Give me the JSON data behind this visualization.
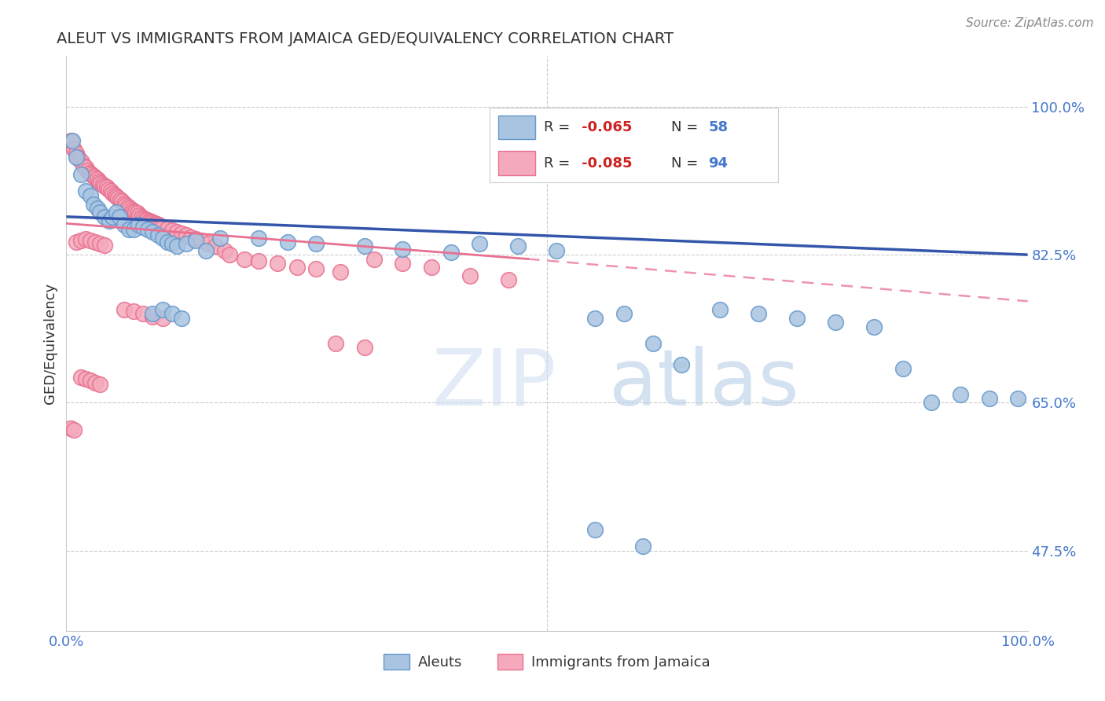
{
  "title": "ALEUT VS IMMIGRANTS FROM JAMAICA GED/EQUIVALENCY CORRELATION CHART",
  "source": "Source: ZipAtlas.com",
  "ylabel": "GED/Equivalency",
  "xlim": [
    0.0,
    1.0
  ],
  "ylim": [
    0.38,
    1.06
  ],
  "yticks": [
    0.475,
    0.65,
    0.825,
    1.0
  ],
  "ytick_labels": [
    "47.5%",
    "65.0%",
    "82.5%",
    "100.0%"
  ],
  "blue_color": "#A8C4E0",
  "blue_edge": "#6699CC",
  "pink_color": "#F4AABC",
  "pink_edge": "#E87090",
  "trend_blue_color": "#3355AA",
  "trend_pink_color": "#E87090",
  "watermark_zip": "ZIP",
  "watermark_atlas": "atlas",
  "watermark_color": "#C8D8EC",
  "aleuts_x": [
    0.006,
    0.01,
    0.015,
    0.02,
    0.025,
    0.028,
    0.032,
    0.035,
    0.04,
    0.045,
    0.048,
    0.052,
    0.055,
    0.06,
    0.065,
    0.07,
    0.075,
    0.08,
    0.085,
    0.09,
    0.095,
    0.1,
    0.105,
    0.11,
    0.115,
    0.125,
    0.135,
    0.145,
    0.16,
    0.09,
    0.1,
    0.11,
    0.12,
    0.2,
    0.23,
    0.26,
    0.31,
    0.35,
    0.4,
    0.43,
    0.47,
    0.51,
    0.55,
    0.58,
    0.61,
    0.64,
    0.68,
    0.72,
    0.76,
    0.8,
    0.84,
    0.87,
    0.9,
    0.93,
    0.96,
    0.99,
    0.55,
    0.6
  ],
  "aleuts_y": [
    0.96,
    0.94,
    0.92,
    0.9,
    0.895,
    0.885,
    0.88,
    0.875,
    0.87,
    0.865,
    0.87,
    0.875,
    0.87,
    0.86,
    0.855,
    0.855,
    0.86,
    0.858,
    0.855,
    0.852,
    0.848,
    0.845,
    0.84,
    0.838,
    0.835,
    0.838,
    0.842,
    0.83,
    0.845,
    0.755,
    0.76,
    0.755,
    0.75,
    0.845,
    0.84,
    0.838,
    0.835,
    0.832,
    0.828,
    0.838,
    0.835,
    0.83,
    0.75,
    0.755,
    0.72,
    0.695,
    0.76,
    0.755,
    0.75,
    0.745,
    0.74,
    0.69,
    0.65,
    0.66,
    0.655,
    0.655,
    0.5,
    0.48
  ],
  "jamaica_x": [
    0.003,
    0.005,
    0.008,
    0.01,
    0.012,
    0.014,
    0.016,
    0.018,
    0.02,
    0.022,
    0.024,
    0.026,
    0.028,
    0.03,
    0.032,
    0.034,
    0.036,
    0.038,
    0.04,
    0.042,
    0.044,
    0.046,
    0.048,
    0.05,
    0.052,
    0.054,
    0.056,
    0.058,
    0.06,
    0.062,
    0.064,
    0.066,
    0.068,
    0.07,
    0.072,
    0.074,
    0.076,
    0.078,
    0.08,
    0.082,
    0.084,
    0.086,
    0.088,
    0.09,
    0.092,
    0.094,
    0.096,
    0.098,
    0.1,
    0.105,
    0.11,
    0.115,
    0.12,
    0.125,
    0.13,
    0.135,
    0.14,
    0.148,
    0.155,
    0.165,
    0.01,
    0.015,
    0.02,
    0.025,
    0.03,
    0.035,
    0.04,
    0.17,
    0.185,
    0.2,
    0.22,
    0.24,
    0.26,
    0.285,
    0.32,
    0.35,
    0.38,
    0.42,
    0.46,
    0.28,
    0.31,
    0.06,
    0.07,
    0.08,
    0.09,
    0.1,
    0.015,
    0.02,
    0.025,
    0.03,
    0.035,
    0.005,
    0.008
  ],
  "jamaica_y": [
    0.955,
    0.96,
    0.95,
    0.945,
    0.94,
    0.938,
    0.935,
    0.93,
    0.928,
    0.925,
    0.922,
    0.92,
    0.918,
    0.916,
    0.914,
    0.912,
    0.91,
    0.908,
    0.906,
    0.905,
    0.902,
    0.9,
    0.898,
    0.896,
    0.894,
    0.892,
    0.89,
    0.888,
    0.886,
    0.884,
    0.882,
    0.88,
    0.878,
    0.876,
    0.875,
    0.874,
    0.872,
    0.87,
    0.868,
    0.867,
    0.866,
    0.865,
    0.864,
    0.863,
    0.862,
    0.861,
    0.86,
    0.859,
    0.858,
    0.856,
    0.854,
    0.852,
    0.85,
    0.848,
    0.846,
    0.844,
    0.842,
    0.838,
    0.835,
    0.83,
    0.84,
    0.842,
    0.844,
    0.842,
    0.84,
    0.838,
    0.836,
    0.825,
    0.82,
    0.818,
    0.815,
    0.81,
    0.808,
    0.805,
    0.82,
    0.815,
    0.81,
    0.8,
    0.795,
    0.72,
    0.715,
    0.76,
    0.758,
    0.755,
    0.752,
    0.75,
    0.68,
    0.678,
    0.676,
    0.674,
    0.672,
    0.62,
    0.618
  ],
  "trend_blue_x0": 0.0,
  "trend_blue_x1": 1.0,
  "trend_blue_y0": 0.87,
  "trend_blue_y1": 0.825,
  "trend_pink_x0": 0.0,
  "trend_pink_x1": 0.48,
  "trend_pink_solid_y0": 0.862,
  "trend_pink_solid_y1": 0.82,
  "trend_pink_dash_x0": 0.48,
  "trend_pink_dash_x1": 1.0,
  "trend_pink_dash_y0": 0.82,
  "trend_pink_dash_y1": 0.77
}
